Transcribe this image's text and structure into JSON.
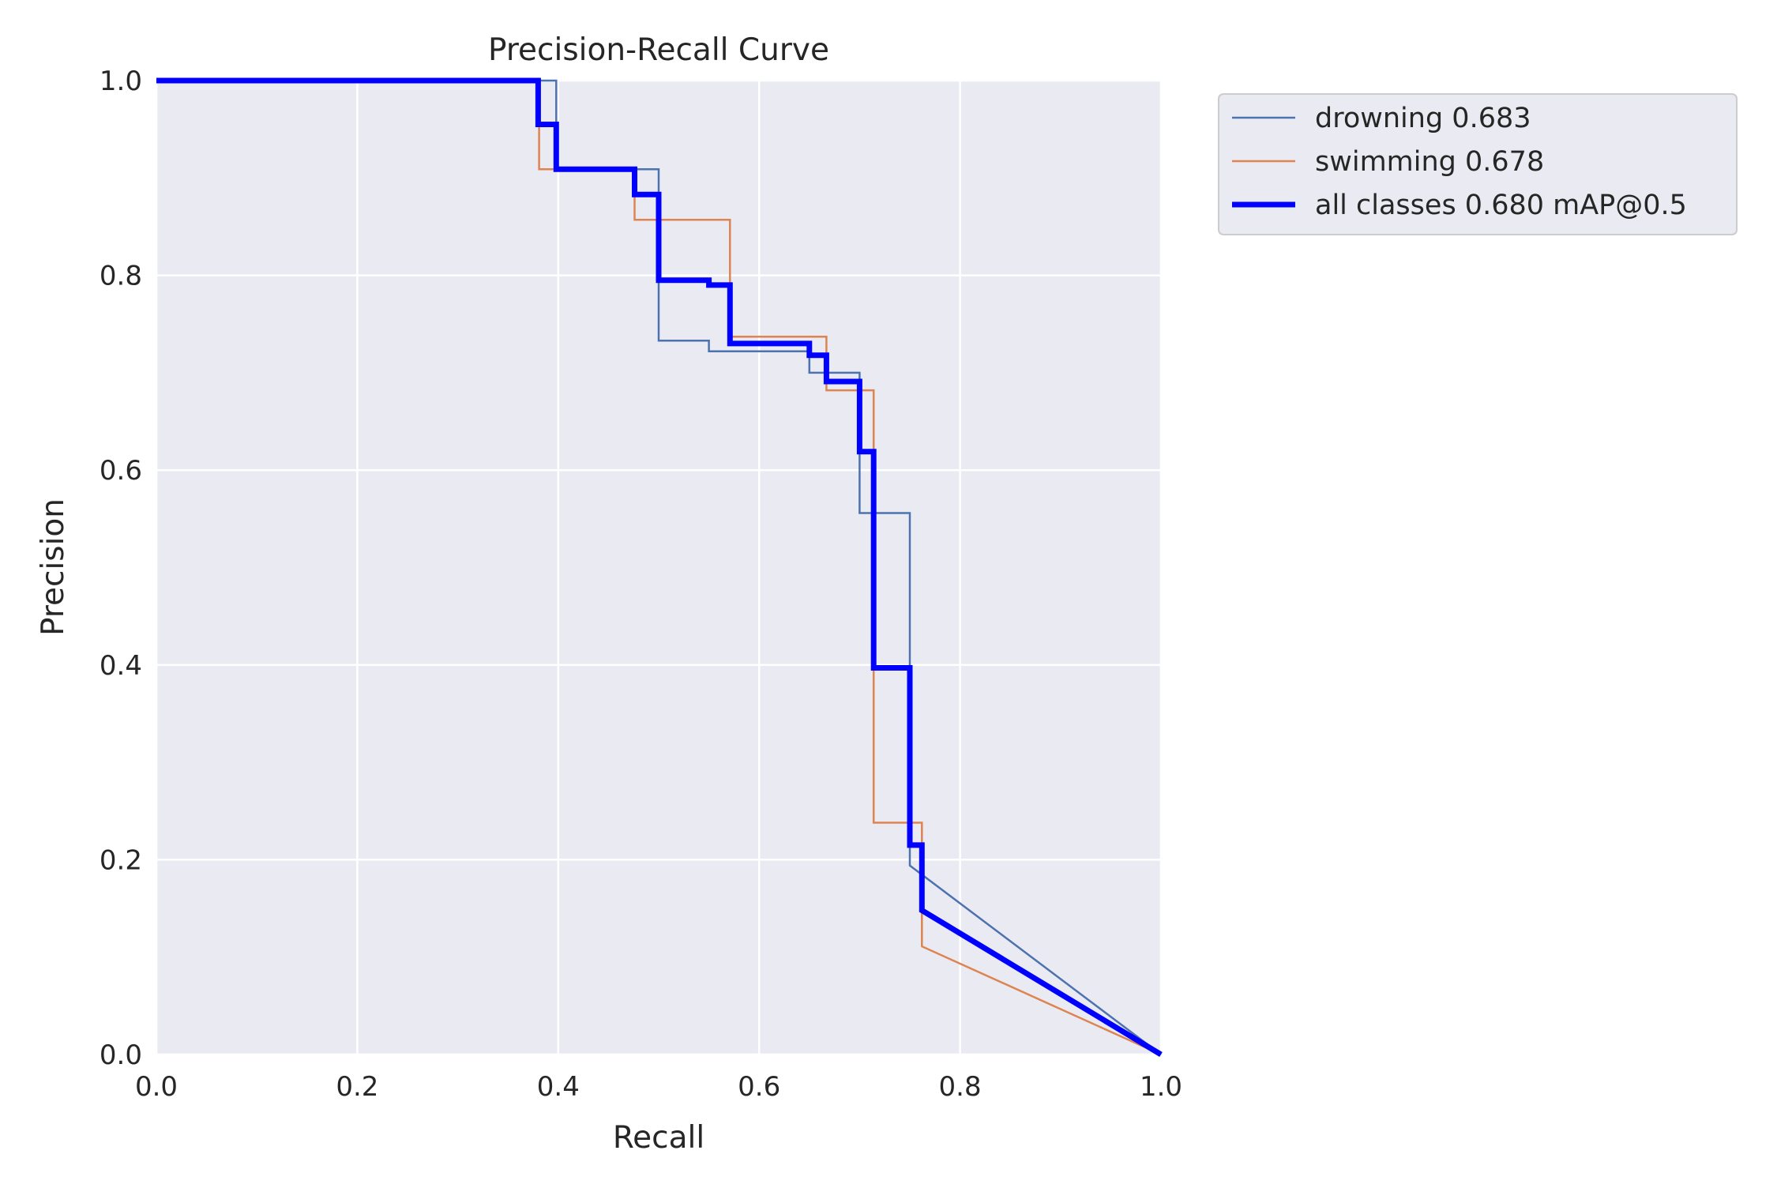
{
  "chart_data": {
    "type": "line",
    "title": "Precision-Recall Curve",
    "xlabel": "Recall",
    "ylabel": "Precision",
    "xlim": [
      0,
      1
    ],
    "ylim": [
      0,
      1
    ],
    "xticks": [
      "0.0",
      "0.2",
      "0.4",
      "0.6",
      "0.8",
      "1.0"
    ],
    "yticks": [
      "0.0",
      "0.2",
      "0.4",
      "0.6",
      "0.8",
      "1.0"
    ],
    "grid": true,
    "legend_position": "outside-top-right",
    "series": [
      {
        "name": "drowning 0.683",
        "color": "#4c72b0",
        "line_width": "thin",
        "points": [
          [
            0.0,
            1.0
          ],
          [
            0.398,
            1.0
          ],
          [
            0.398,
            0.909
          ],
          [
            0.5,
            0.909
          ],
          [
            0.5,
            0.733
          ],
          [
            0.55,
            0.733
          ],
          [
            0.55,
            0.722
          ],
          [
            0.65,
            0.722
          ],
          [
            0.65,
            0.7
          ],
          [
            0.7,
            0.7
          ],
          [
            0.7,
            0.556
          ],
          [
            0.75,
            0.556
          ],
          [
            0.75,
            0.194
          ],
          [
            1.0,
            0.0
          ]
        ]
      },
      {
        "name": "swimming 0.678",
        "color": "#dd8452",
        "line_width": "thin",
        "points": [
          [
            0.0,
            1.0
          ],
          [
            0.381,
            1.0
          ],
          [
            0.381,
            0.909
          ],
          [
            0.476,
            0.909
          ],
          [
            0.476,
            0.857
          ],
          [
            0.571,
            0.857
          ],
          [
            0.571,
            0.737
          ],
          [
            0.667,
            0.737
          ],
          [
            0.667,
            0.682
          ],
          [
            0.714,
            0.682
          ],
          [
            0.714,
            0.238
          ],
          [
            0.762,
            0.238
          ],
          [
            0.762,
            0.111
          ],
          [
            1.0,
            0.0
          ]
        ]
      },
      {
        "name": "all classes 0.680 mAP@0.5",
        "color": "#0000ff",
        "line_width": "thick",
        "points": [
          [
            0.0,
            1.0
          ],
          [
            0.38,
            1.0
          ],
          [
            0.38,
            0.955
          ],
          [
            0.398,
            0.955
          ],
          [
            0.398,
            0.909
          ],
          [
            0.476,
            0.909
          ],
          [
            0.476,
            0.883
          ],
          [
            0.5,
            0.883
          ],
          [
            0.5,
            0.795
          ],
          [
            0.55,
            0.795
          ],
          [
            0.55,
            0.79
          ],
          [
            0.571,
            0.79
          ],
          [
            0.571,
            0.73
          ],
          [
            0.65,
            0.73
          ],
          [
            0.65,
            0.718
          ],
          [
            0.667,
            0.718
          ],
          [
            0.667,
            0.691
          ],
          [
            0.7,
            0.691
          ],
          [
            0.7,
            0.619
          ],
          [
            0.714,
            0.619
          ],
          [
            0.714,
            0.397
          ],
          [
            0.75,
            0.397
          ],
          [
            0.75,
            0.215
          ],
          [
            0.762,
            0.215
          ],
          [
            0.762,
            0.148
          ],
          [
            1.0,
            0.0
          ]
        ]
      }
    ]
  }
}
